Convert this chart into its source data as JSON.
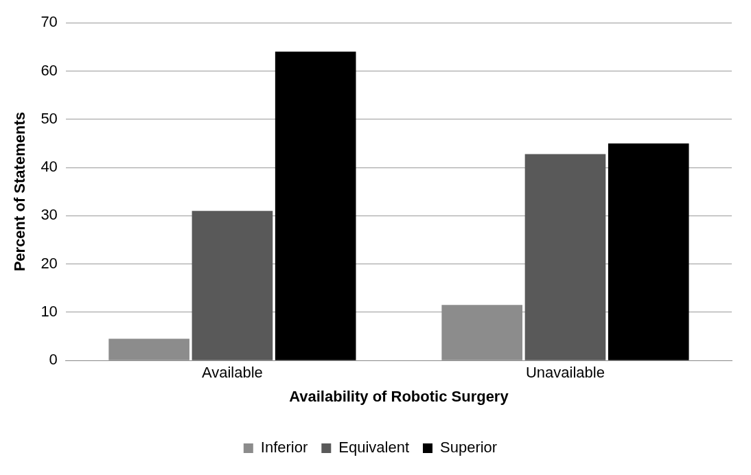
{
  "chart_data": {
    "type": "bar",
    "xlabel": "Availability of Robotic Surgery",
    "ylabel": "Percent of Statements",
    "categories": [
      "Available",
      "Unavailable"
    ],
    "series": [
      {
        "name": "Inferior",
        "color": "#8c8c8c",
        "values": [
          4.5,
          11.5
        ]
      },
      {
        "name": "Equivalent",
        "color": "#595959",
        "values": [
          31,
          42.8
        ]
      },
      {
        "name": "Superior",
        "color": "#000000",
        "values": [
          64,
          45
        ]
      }
    ],
    "ylim": [
      0,
      70
    ],
    "yticks": [
      0,
      10,
      20,
      30,
      40,
      50,
      60,
      70
    ],
    "grid": "y",
    "legend": "bottom"
  }
}
